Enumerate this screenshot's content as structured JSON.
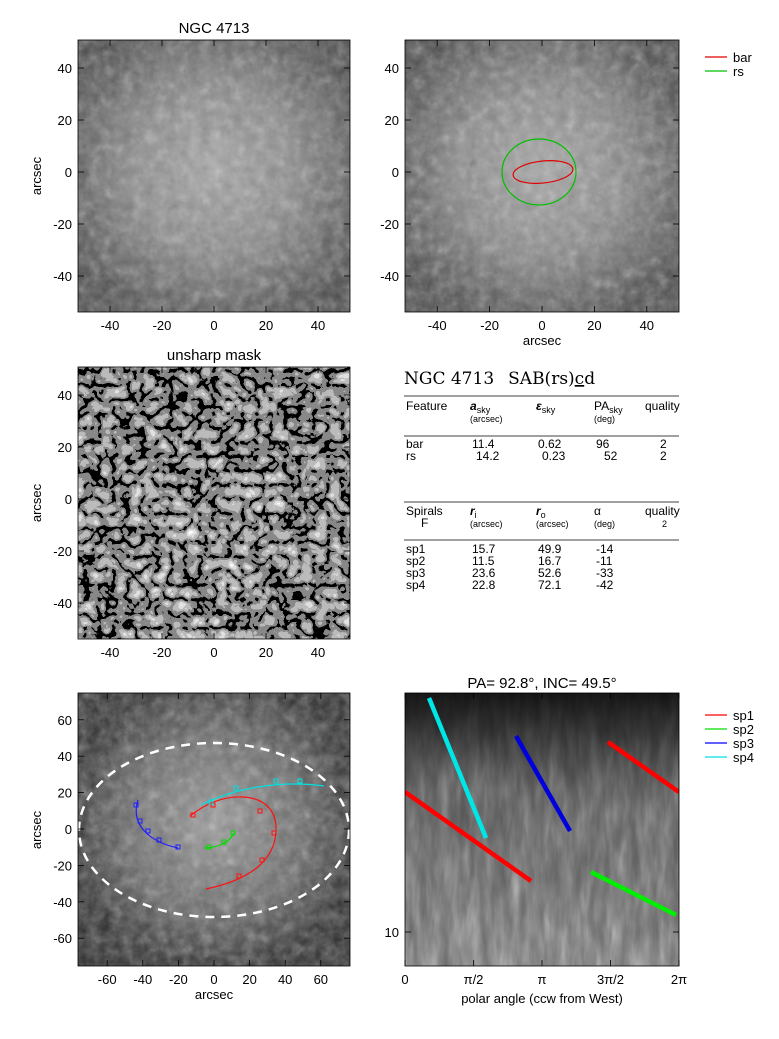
{
  "panels": {
    "top_left": {
      "title": "NGC 4713",
      "ylabel": "arcsec",
      "xticks": [
        "-40",
        "-20",
        "0",
        "20",
        "40"
      ],
      "yticks": [
        "40",
        "20",
        "0",
        "-20",
        "-40"
      ]
    },
    "top_right": {
      "xlabel": "arcsec",
      "xticks": [
        "-40",
        "-20",
        "0",
        "20",
        "40"
      ],
      "yticks": [
        "40",
        "20",
        "0",
        "-20",
        "-40"
      ],
      "legend": [
        {
          "label": "bar",
          "color": "#e00000"
        },
        {
          "label": "rs",
          "color": "#00c000"
        }
      ]
    },
    "mid_left": {
      "title": "unsharp mask",
      "ylabel": "arcsec",
      "xticks": [
        "-40",
        "-20",
        "0",
        "20",
        "40"
      ],
      "yticks": [
        "40",
        "20",
        "0",
        "-20",
        "-40"
      ]
    },
    "bot_left": {
      "xlabel": "arcsec",
      "ylabel": "arcsec",
      "xticks": [
        "-60",
        "-40",
        "-20",
        "0",
        "20",
        "40",
        "60"
      ],
      "yticks": [
        "60",
        "40",
        "20",
        "0",
        "-20",
        "-40",
        "-60"
      ]
    },
    "bot_right": {
      "title": "PA=  92.8°, INC=  49.5°",
      "xlabel": "polar angle (ccw from West)",
      "xticks": [
        "0",
        "π/2",
        "π",
        "3π/2",
        "2π"
      ],
      "ytick": "10",
      "legend": [
        {
          "label": "sp1",
          "color": "#ff0000"
        },
        {
          "label": "sp2",
          "color": "#00dd00"
        },
        {
          "label": "sp3",
          "color": "#0000ff"
        },
        {
          "label": "sp4",
          "color": "#00e0e0"
        }
      ]
    }
  },
  "table": {
    "heading_galaxy": "NGC 4713",
    "heading_class_pre": "SAB(rs)",
    "heading_class_ul": "c",
    "heading_class_post": "d",
    "features_header": {
      "col1": "Feature",
      "col2": "a",
      "col2_sub": "sky",
      "col2_unit": "(arcsec)",
      "col3": "ε",
      "col3_sub": "sky",
      "col4": "PA",
      "col4_sub": "sky",
      "col4_unit": "(deg)",
      "col5": "quality"
    },
    "features": [
      {
        "name": "bar",
        "a": "11.4",
        "e": "0.62",
        "pa": "96",
        "q": "2"
      },
      {
        "name": "rs",
        "a": "14.2",
        "e": "0.23",
        "pa": "52",
        "q": "2"
      }
    ],
    "spirals_header": {
      "col1": "Spirals",
      "col1b": "F",
      "col2": "r",
      "col2_sub": "i",
      "col2_unit": "(arcsec)",
      "col3": "r",
      "col3_sub": "o",
      "col3_unit": "(arcsec)",
      "col4": "α",
      "col4_unit": "(deg)",
      "col5": "quality",
      "col5b": "2"
    },
    "spirals": [
      {
        "name": "sp1",
        "ri": "15.7",
        "ro": "49.9",
        "alpha": "-14"
      },
      {
        "name": "sp2",
        "ri": "11.5",
        "ro": "16.7",
        "alpha": "-11"
      },
      {
        "name": "sp3",
        "ri": "23.6",
        "ro": "52.6",
        "alpha": "-33"
      },
      {
        "name": "sp4",
        "ri": "22.8",
        "ro": "72.1",
        "alpha": "-42"
      }
    ]
  }
}
